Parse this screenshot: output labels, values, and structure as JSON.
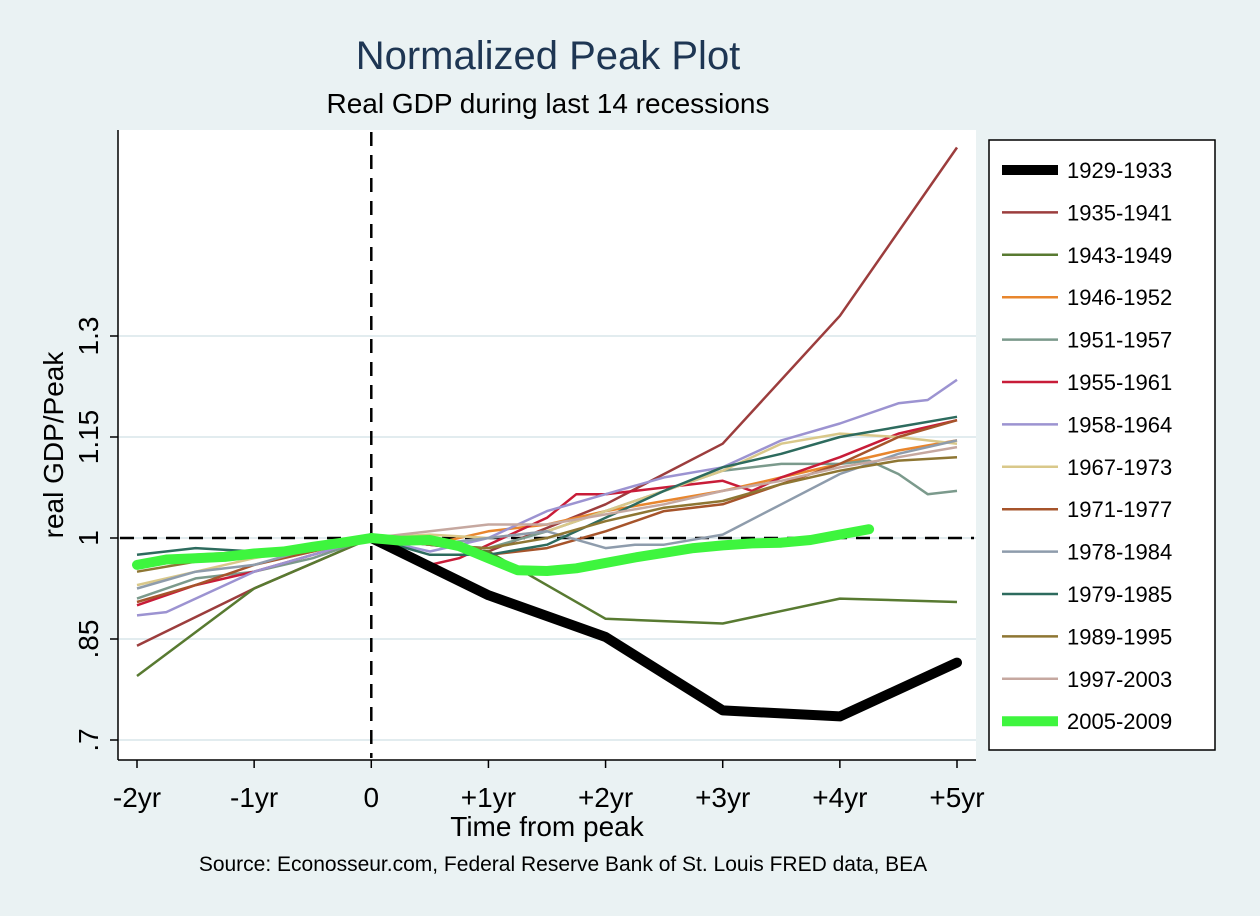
{
  "chart_data": {
    "type": "line",
    "title": "Normalized Peak Plot",
    "subtitle": "Real GDP during last 14 recessions",
    "xlabel": "Time from peak",
    "ylabel": "real GDP/Peak",
    "source": "Source: Econosseur.com, Federal Reserve Bank of St. Louis FRED data, BEA",
    "x_tick_labels": [
      "-2yr",
      "-1yr",
      "0",
      "+1yr",
      "+2yr",
      "+3yr",
      "+4yr",
      "+5yr"
    ],
    "x_tick_values": [
      -2,
      -1,
      0,
      1,
      2,
      3,
      4,
      5
    ],
    "y_tick_labels": [
      ".7",
      ".85",
      "1",
      "1.15",
      "1.3"
    ],
    "y_tick_values": [
      0.7,
      0.85,
      1.0,
      1.15,
      1.3
    ],
    "xlim": [
      -2.2,
      5.2
    ],
    "ylim": [
      0.67,
      1.6
    ],
    "grid": true,
    "legend_position": "right",
    "reference_lines": {
      "x": 0,
      "y": 1
    },
    "series": [
      {
        "name": "1929-1933",
        "color": "#000000",
        "width": 10,
        "x": [
          0,
          1,
          2,
          3,
          4,
          5
        ],
        "y": [
          1.0,
          0.915,
          0.853,
          0.744,
          0.735,
          0.815
        ]
      },
      {
        "name": "1935-1941",
        "color": "#9c3d3d",
        "width": 2.5,
        "x": [
          -2,
          -1,
          0,
          1,
          2,
          3,
          4,
          5
        ],
        "y": [
          0.84,
          0.925,
          1.0,
          0.98,
          1.05,
          1.14,
          1.33,
          1.58
        ]
      },
      {
        "name": "1943-1949",
        "color": "#587a31",
        "width": 2.5,
        "x": [
          -2,
          -1,
          0,
          1,
          2,
          3,
          4,
          5
        ],
        "y": [
          0.795,
          0.925,
          1.0,
          0.98,
          0.88,
          0.873,
          0.91,
          0.905
        ]
      },
      {
        "name": "1946-1952",
        "color": "#e8862d",
        "width": 2.5,
        "x": [
          -2,
          -1.5,
          -1,
          -0.5,
          0,
          0.5,
          1,
          1.5,
          2,
          2.5,
          3,
          3.5,
          4,
          4.5,
          5
        ],
        "y": [
          0.96,
          0.975,
          0.98,
          0.99,
          1.0,
          0.99,
          1.01,
          1.02,
          1.04,
          1.055,
          1.07,
          1.09,
          1.11,
          1.13,
          1.145
        ]
      },
      {
        "name": "1951-1957",
        "color": "#7b9a8c",
        "width": 2.5,
        "x": [
          -2,
          -1.5,
          -1,
          -0.5,
          0,
          0.5,
          1,
          1.5,
          2,
          2.5,
          3,
          3.5,
          4,
          4.25,
          4.5,
          4.75,
          5
        ],
        "y": [
          0.91,
          0.94,
          0.95,
          0.97,
          1.0,
          0.99,
          0.985,
          1.01,
          1.04,
          1.07,
          1.1,
          1.11,
          1.11,
          1.115,
          1.095,
          1.065,
          1.07
        ]
      },
      {
        "name": "1955-1961",
        "color": "#c81c38",
        "width": 2.5,
        "x": [
          -2,
          -1.5,
          -1,
          -0.5,
          0,
          0.25,
          0.5,
          0.75,
          1,
          1.25,
          1.5,
          1.75,
          2,
          2.5,
          3,
          3.25,
          3.5,
          4,
          4.5,
          5
        ],
        "y": [
          0.9,
          0.93,
          0.95,
          0.975,
          1.0,
          0.985,
          0.96,
          0.97,
          0.99,
          1.01,
          1.03,
          1.065,
          1.065,
          1.075,
          1.085,
          1.07,
          1.09,
          1.12,
          1.155,
          1.175
        ]
      },
      {
        "name": "1958-1964",
        "color": "#9c93d1",
        "width": 2.5,
        "x": [
          -2,
          -1.75,
          -1.5,
          -1,
          -0.5,
          0,
          0.5,
          1,
          1.5,
          2,
          2.5,
          3,
          3.5,
          4,
          4.5,
          4.75,
          5
        ],
        "y": [
          0.885,
          0.89,
          0.91,
          0.95,
          0.975,
          1.0,
          0.98,
          1.0,
          1.04,
          1.065,
          1.09,
          1.105,
          1.145,
          1.17,
          1.2,
          1.205,
          1.235
        ]
      },
      {
        "name": "1967-1973",
        "color": "#d9c88a",
        "width": 2.5,
        "x": [
          -2,
          -1.5,
          -1,
          -0.5,
          0,
          0.5,
          1,
          1.5,
          2,
          2.5,
          3,
          3.5,
          4,
          4.5,
          4.75,
          5
        ],
        "y": [
          0.93,
          0.95,
          0.97,
          0.985,
          1.0,
          1.005,
          1.0,
          1.01,
          1.04,
          1.07,
          1.1,
          1.14,
          1.155,
          1.15,
          1.145,
          1.14
        ]
      },
      {
        "name": "1971-1977",
        "color": "#a6542b",
        "width": 2.5,
        "x": [
          -2,
          -1.5,
          -1,
          -0.5,
          0,
          0.5,
          1,
          1.5,
          2,
          2.5,
          3,
          3.5,
          4,
          4.5,
          5
        ],
        "y": [
          0.905,
          0.93,
          0.96,
          0.98,
          1.0,
          0.995,
          0.975,
          0.985,
          1.01,
          1.04,
          1.05,
          1.08,
          1.11,
          1.15,
          1.175
        ]
      },
      {
        "name": "1978-1984",
        "color": "#8e9cac",
        "width": 2.5,
        "x": [
          -2,
          -1.5,
          -1,
          -0.5,
          0,
          0.5,
          1,
          1.5,
          2,
          2.25,
          2.5,
          3,
          3.5,
          4,
          4.5,
          5
        ],
        "y": [
          0.925,
          0.95,
          0.96,
          0.985,
          1.0,
          0.99,
          1.0,
          1.01,
          0.985,
          0.99,
          0.99,
          1.005,
          1.05,
          1.095,
          1.125,
          1.145
        ]
      },
      {
        "name": "1979-1985",
        "color": "#2d6b5e",
        "width": 2.5,
        "x": [
          -2,
          -1.5,
          -1,
          -0.5,
          0,
          0.5,
          1,
          1.5,
          2,
          2.5,
          3,
          3.5,
          4,
          4.5,
          5
        ],
        "y": [
          0.975,
          0.985,
          0.98,
          0.985,
          1.0,
          0.975,
          0.975,
          0.99,
          1.03,
          1.07,
          1.105,
          1.125,
          1.15,
          1.165,
          1.18
        ]
      },
      {
        "name": "1989-1995",
        "color": "#8e7633",
        "width": 2.5,
        "x": [
          -2,
          -1.5,
          -1,
          -0.5,
          0,
          0.5,
          1,
          1.5,
          2,
          2.5,
          3,
          3.5,
          4,
          4.5,
          5
        ],
        "y": [
          0.95,
          0.965,
          0.975,
          0.99,
          1.0,
          0.99,
          0.985,
          1.0,
          1.025,
          1.045,
          1.055,
          1.08,
          1.1,
          1.115,
          1.12
        ]
      },
      {
        "name": "1997-2003",
        "color": "#c6a8a0",
        "width": 2.5,
        "x": [
          -2,
          -1.5,
          -1,
          -0.5,
          0,
          0.5,
          1,
          1.5,
          2,
          2.5,
          3,
          3.5,
          4,
          4.5,
          5
        ],
        "y": [
          0.955,
          0.97,
          0.98,
          0.99,
          1.0,
          1.01,
          1.02,
          1.02,
          1.035,
          1.05,
          1.07,
          1.085,
          1.105,
          1.12,
          1.135
        ]
      },
      {
        "name": "2005-2009",
        "color": "#3ef53e",
        "width": 10,
        "x": [
          -2,
          -1.75,
          -1.5,
          -1.25,
          -1,
          -0.75,
          -0.5,
          -0.25,
          0,
          0.25,
          0.5,
          0.75,
          1,
          1.25,
          1.5,
          1.75,
          2,
          2.25,
          2.5,
          2.75,
          3,
          3.25,
          3.5,
          3.75,
          4,
          4.25
        ],
        "y": [
          0.96,
          0.968,
          0.97,
          0.972,
          0.977,
          0.98,
          0.987,
          0.993,
          1.0,
          0.996,
          0.997,
          0.988,
          0.97,
          0.952,
          0.951,
          0.955,
          0.963,
          0.971,
          0.978,
          0.985,
          0.989,
          0.992,
          0.993,
          0.997,
          1.005,
          1.013
        ]
      }
    ]
  }
}
